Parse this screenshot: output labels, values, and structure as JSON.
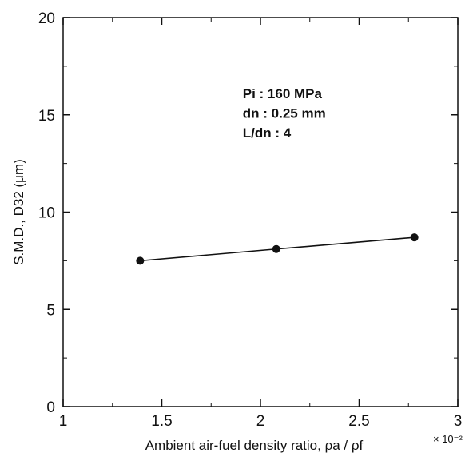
{
  "chart_data": {
    "type": "line",
    "xlabel": "Ambient air-fuel density ratio, ρa / ρf",
    "x_multiplier": "× 10⁻²",
    "ylabel": "S.M.D., D32 (μm)",
    "xlim": [
      1,
      3
    ],
    "ylim": [
      0,
      20
    ],
    "x_ticks": [
      "1",
      "1.5",
      "2",
      "2.5",
      "3"
    ],
    "y_ticks": [
      "0",
      "5",
      "10",
      "15",
      "20"
    ],
    "series": [
      {
        "x": [
          1.39,
          2.08,
          2.78
        ],
        "y": [
          7.5,
          8.1,
          8.7
        ]
      }
    ],
    "annotations": [
      "Pi  :  160 MPa",
      "dn  :  0.25 mm",
      "L/dn  :  4"
    ],
    "grid": false,
    "line_color": "#111111",
    "marker_color": "#111111"
  }
}
